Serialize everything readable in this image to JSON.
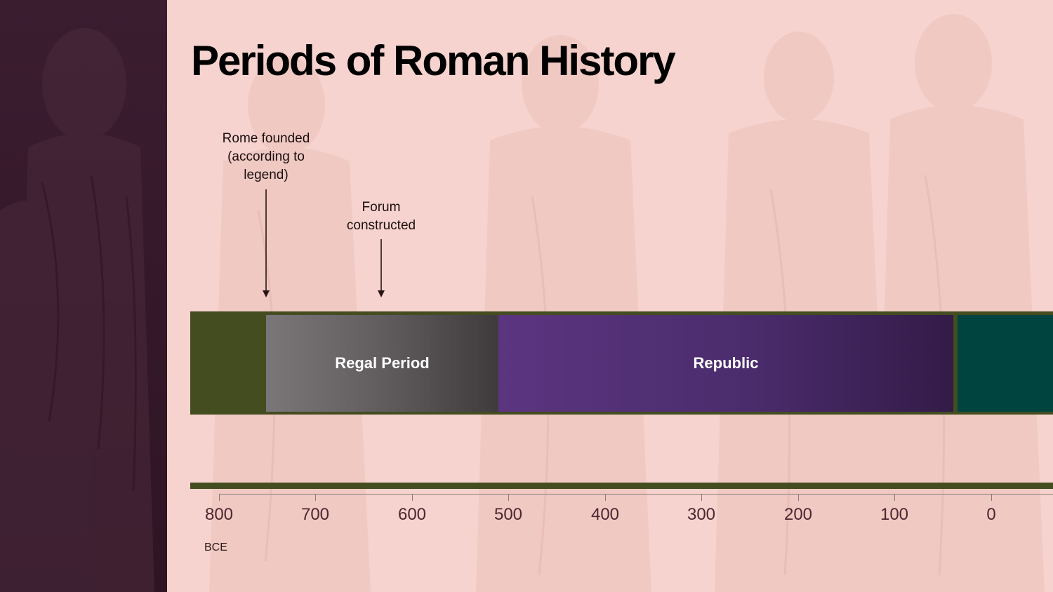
{
  "slide": {
    "title": "Periods of Roman History"
  },
  "annotations": [
    {
      "text": "Rome founded (according to legend)",
      "year_bce": 753
    },
    {
      "text": "Forum constructed",
      "year_bce": 625
    }
  ],
  "periods": [
    {
      "label": "Regal Period",
      "start_bce": 753,
      "end_bce": 509
    },
    {
      "label": "Republic",
      "start_bce": 509,
      "end_bce": 27
    },
    {
      "label": "",
      "start_bce": 27
    }
  ],
  "axis": {
    "ticks": [
      "800",
      "700",
      "600",
      "500",
      "400",
      "300",
      "200",
      "100",
      "0"
    ],
    "era_label": "BCE"
  },
  "colors": {
    "sidebar": "#3b1d30",
    "background": "#f6d3ce",
    "band": "#434d20",
    "regal": "#615c5d",
    "republic": "#4a2c6c",
    "empire": "#004440"
  }
}
